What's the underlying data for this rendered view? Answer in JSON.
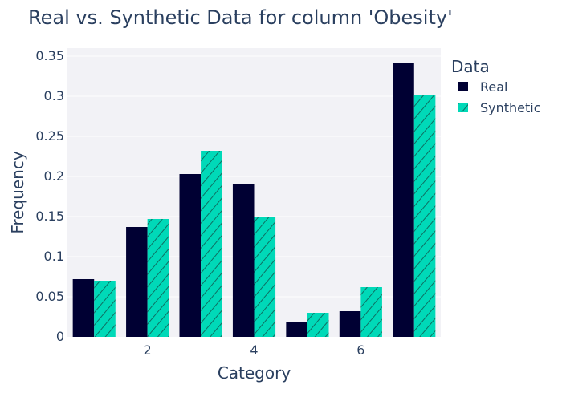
{
  "chart_data": {
    "type": "bar",
    "title": "Real vs. Synthetic Data for column 'Obesity'",
    "xlabel": "Category",
    "ylabel": "Frequency",
    "x": [
      1,
      2,
      3,
      4,
      5,
      6,
      7
    ],
    "x_tick_values": [
      2,
      4,
      6
    ],
    "x_tick_labels": [
      "2",
      "4",
      "6"
    ],
    "ylim": [
      0,
      0.36
    ],
    "y_tick_values": [
      0,
      0.05,
      0.1,
      0.15,
      0.2,
      0.25,
      0.3,
      0.35
    ],
    "y_tick_labels": [
      "0",
      "0.05",
      "0.1",
      "0.15",
      "0.2",
      "0.25",
      "0.3",
      "0.35"
    ],
    "grid": true,
    "legend": {
      "title": "Data",
      "position": "right"
    },
    "series": [
      {
        "name": "Real",
        "color": "#000033",
        "pattern": "solid",
        "values": [
          0.072,
          0.137,
          0.203,
          0.19,
          0.019,
          0.032,
          0.341
        ]
      },
      {
        "name": "Synthetic",
        "color": "#00d9b8",
        "pattern": "diagonal-hatch",
        "values": [
          0.07,
          0.147,
          0.232,
          0.15,
          0.03,
          0.062,
          0.302
        ]
      }
    ]
  }
}
